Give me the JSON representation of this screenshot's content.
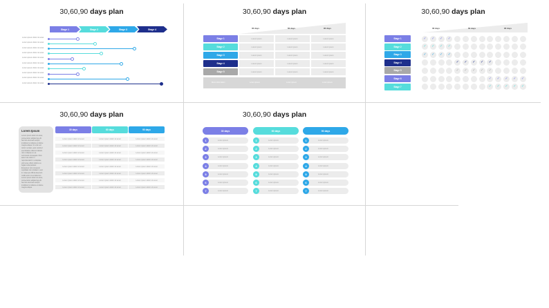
{
  "colors": {
    "purple": "#7b7fe6",
    "teal": "#56dcdc",
    "blue": "#2ea8e8",
    "navy": "#1e2f8c",
    "gray": "#a9a9a9",
    "lightgray": "#ececec"
  },
  "slide1": {
    "title_plain": "30,60,90 ",
    "title_bold": "days plan",
    "stages": [
      "Stage 1",
      "Stage 2",
      "Stage 3",
      "Stage 4"
    ],
    "rows": [
      {
        "text": "Lorem ipsum dolor sit amet",
        "end": 0.22,
        "color": "#7b7fe6"
      },
      {
        "text": "Lorem ipsum dolor sit amet",
        "end": 0.35,
        "color": "#56dcdc"
      },
      {
        "text": "Lorem ipsum dolor sit amet",
        "end": 0.65,
        "color": "#2ea8e8"
      },
      {
        "text": "Lorem ipsum dolor sit amet",
        "end": 0.4,
        "color": "#56dcdc"
      },
      {
        "text": "Lorem ipsum dolor sit amet",
        "end": 0.18,
        "color": "#7b7fe6"
      },
      {
        "text": "Lorem ipsum dolor sit amet",
        "end": 0.55,
        "color": "#2ea8e8"
      },
      {
        "text": "Lorem ipsum dolor sit amet",
        "end": 0.27,
        "color": "#56dcdc"
      },
      {
        "text": "Lorem ipsum dolor sit amet",
        "end": 0.22,
        "color": "#7b7fe6"
      },
      {
        "text": "Lorem ipsum dolor sit amet",
        "end": 0.6,
        "color": "#2ea8e8"
      },
      {
        "text": "Lorem ipsum dolor sit amet",
        "end": 0.86,
        "color": "#1e2f8c"
      }
    ]
  },
  "slide2": {
    "title_plain": "30,60,90 ",
    "title_bold": "days plan",
    "headers": [
      "30 days",
      "60 days",
      "90 days"
    ],
    "stages": [
      "Stage 1",
      "Stage 2",
      "Stage 3",
      "Stage 4",
      "Stage 5"
    ],
    "cell_text": "Lorem ipsum",
    "footer_label": "More information",
    "footer_cell": "Lorem ipsum"
  },
  "slide3": {
    "title_plain": "30,60,90 ",
    "title_bold": "days plan",
    "headers": [
      "30 days",
      "60 days",
      "90 days"
    ],
    "stages": [
      "Stage 1",
      "Stage 2",
      "Stage 3",
      "Stage 4",
      "Stage 5",
      "Stage 6",
      "Stage 7"
    ],
    "checks": [
      [
        0,
        1,
        2,
        3
      ],
      [
        0,
        1,
        2,
        3
      ],
      [
        0,
        1,
        2,
        3
      ],
      [
        4,
        5,
        6,
        7,
        8
      ],
      [
        4,
        5,
        6,
        7,
        8
      ],
      [
        8,
        9,
        10,
        11,
        12
      ],
      [
        8,
        9,
        10,
        11,
        12
      ]
    ],
    "check_mark": "✓"
  },
  "slide4": {
    "title_plain": "30,60,90 ",
    "title_bold": "days plan",
    "sidebar_title": "Lorem Ipsum",
    "sidebar_lines": [
      "Lorem ipsum dolor sit amet,",
      "consectetur adipiscing elit.",
      "Sed do eiusmod tempor",
      "incididunt ut labore et dolore",
      "magna aliqua. Ut enim ad",
      "minim veniam, quis nostrud",
      "exercitation ullamco laboris",
      "nisi ut aliquip ex ea",
      "commodo consequat. Duis",
      "aute irure dolor in",
      "reprehenderit in voluptate",
      "velit esse cillum dolore eu",
      "fugiat nulla pariatur.",
      "Excepteur sint occaecat",
      "cupidatat non proident, sunt",
      "in culpa qui officia deserunt",
      "mollit anim id est laborum.",
      "Lorem ipsum dolor sit amet,",
      "consectetur adipiscing elit.",
      "Sed do eiusmod tempor",
      "incididunt ut labore et dolore",
      "magna aliqua."
    ],
    "headers": [
      "30 days",
      "60 days",
      "90 days"
    ],
    "row_text": "Lorem ipsum dolor sit amet",
    "row_count": 8
  },
  "slide5": {
    "title_plain": "30,60,90 ",
    "title_bold": "days plan",
    "headers": [
      "30 days",
      "60 days",
      "90 days"
    ],
    "numbers": [
      "1",
      "2",
      "3",
      "4",
      "5",
      "6",
      "7"
    ],
    "item_text": "Lorem ipsum"
  }
}
